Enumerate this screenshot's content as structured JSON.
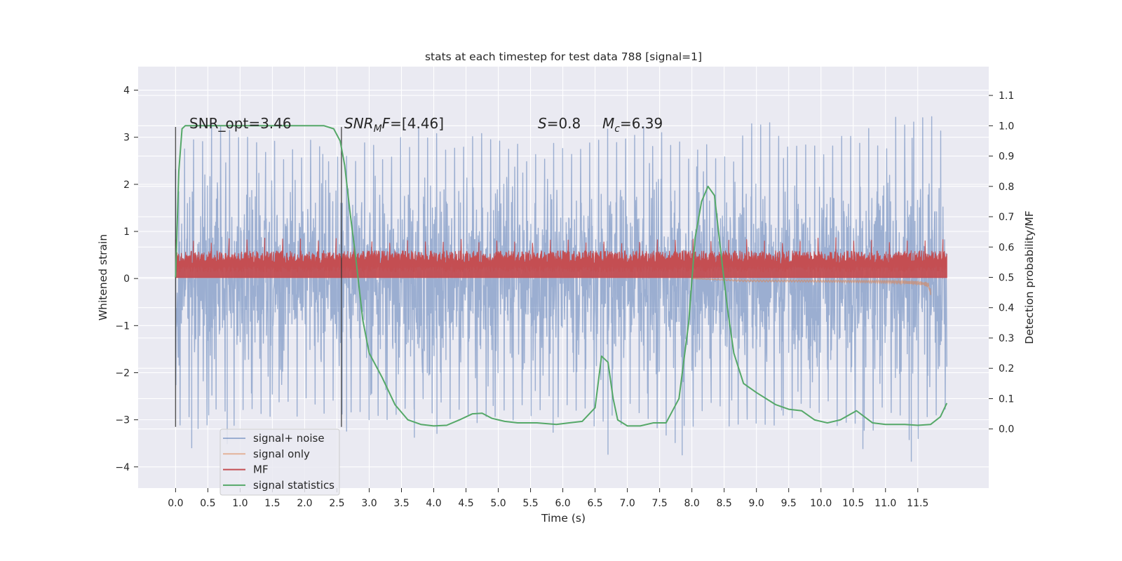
{
  "chart_data": {
    "type": "line",
    "title": "stats at each timestep for test data 788 [signal=1]",
    "xlabel": "Time (s)",
    "ylabel_left": "Whitened strain",
    "ylabel_right": "Detection probability/MF",
    "xlim": [
      -0.58,
      12.6
    ],
    "ylim_left": [
      -4.45,
      4.5
    ],
    "ylim_right": [
      -0.195,
      1.195
    ],
    "x_ticks": [
      0.0,
      0.5,
      1.0,
      1.5,
      2.0,
      2.5,
      3.0,
      3.5,
      4.0,
      4.5,
      5.0,
      5.5,
      6.0,
      6.5,
      7.0,
      7.5,
      8.0,
      8.5,
      9.0,
      9.5,
      10.0,
      10.5,
      11.0,
      11.5
    ],
    "x_tick_labels": [
      "0.0",
      "0.5",
      "1.0",
      "1.5",
      "2.0",
      "2.5",
      "3.0",
      "3.5",
      "4.0",
      "4.5",
      "5.0",
      "5.5",
      "6.0",
      "6.5",
      "7.0",
      "7.5",
      "8.0",
      "8.5",
      "9.0",
      "9.5",
      "10.0",
      "10.5",
      "11.0",
      "11.5"
    ],
    "y_left_ticks": [
      4,
      3,
      2,
      1,
      0,
      -1,
      -2,
      -3,
      -4
    ],
    "y_left_tick_labels": [
      "4",
      "3",
      "2",
      "1",
      "0",
      "−1",
      "−2",
      "−3",
      "−4"
    ],
    "y_right_ticks": [
      1.1,
      1.0,
      0.9,
      0.8,
      0.7,
      0.6,
      0.5,
      0.4,
      0.3,
      0.2,
      0.1,
      0.0
    ],
    "y_right_tick_labels": [
      "1.1",
      "1.0",
      "0.9",
      "0.8",
      "0.7",
      "0.6",
      "0.5",
      "0.4",
      "0.3",
      "0.2",
      "0.1",
      "0.0"
    ],
    "grid": true,
    "legend_position": "lower-left",
    "annotations": {
      "snr_opt": "SNR_opt=3.46",
      "snr_mf_sym": "SNR",
      "snr_mf_sub": "M",
      "snr_mf_rest": "F=[4.46]",
      "s_sym": "S",
      "s_rest": "=0.8",
      "mc_sym": "M",
      "mc_sub": "c",
      "mc_rest": "=6.39"
    },
    "vlines": [
      {
        "x": 0.0,
        "ymin": -3.15,
        "ymax": 3.22
      },
      {
        "x": 2.57,
        "ymin": -3.15,
        "ymax": 3.22
      }
    ],
    "series": [
      {
        "name": "signal+ noise",
        "axis": "left",
        "color": "#4c72b0",
        "style": "noise",
        "x_range": [
          0.0,
          11.95
        ],
        "envelope_upper": [
          2.7,
          3.5,
          3.2,
          2.9,
          3.0,
          2.9,
          2.9,
          2.8,
          3.5,
          2.9,
          3.3,
          2.9,
          2.9,
          2.8,
          3.2,
          3.3,
          3.1,
          2.9,
          2.8,
          3.7,
          3.0,
          2.8,
          3.3,
          3.2,
          3.9,
          3.0
        ],
        "envelope_lower": [
          -3.2,
          -3.3,
          -3.1,
          -3.0,
          -3.0,
          -2.9,
          -2.9,
          -3.4,
          -2.9,
          -3.0,
          -3.1,
          -3.0,
          -2.9,
          -3.0,
          -3.4,
          -2.9,
          -3.7,
          -3.0,
          -3.2,
          -3.3,
          -3.0,
          -3.0,
          -3.3,
          -3.2,
          -3.6,
          -3.0
        ],
        "spike_times": [
          0.25,
          0.8,
          2.65,
          3.7,
          4.05,
          5.85,
          6.7,
          7.85,
          10.65,
          11.4
        ]
      },
      {
        "name": "signal only",
        "axis": "left",
        "color": "#dd8452",
        "style": "chirp",
        "t_end": 11.7,
        "onset": 8.0,
        "min_value": -0.5
      },
      {
        "name": "MF",
        "axis": "left",
        "color": "#c44e52",
        "style": "band",
        "x_range": [
          0.0,
          11.95
        ],
        "band_bottom": 0.02,
        "band_typical": 0.45,
        "band_peak": 0.87
      },
      {
        "name": "signal statistics",
        "axis": "right",
        "color": "#55a868",
        "style": "line",
        "x": [
          0.0,
          0.05,
          0.1,
          0.15,
          0.2,
          0.3,
          0.5,
          1.0,
          1.5,
          2.0,
          2.3,
          2.45,
          2.55,
          2.62,
          2.7,
          2.8,
          2.9,
          3.0,
          3.2,
          3.4,
          3.6,
          3.8,
          4.0,
          4.2,
          4.4,
          4.6,
          4.75,
          4.9,
          5.1,
          5.3,
          5.6,
          5.9,
          6.1,
          6.3,
          6.5,
          6.6,
          6.7,
          6.78,
          6.85,
          7.0,
          7.2,
          7.4,
          7.6,
          7.8,
          7.95,
          8.05,
          8.15,
          8.25,
          8.35,
          8.45,
          8.55,
          8.65,
          8.8,
          9.0,
          9.3,
          9.5,
          9.7,
          9.9,
          10.1,
          10.3,
          10.55,
          10.8,
          11.0,
          11.3,
          11.5,
          11.7,
          11.85,
          11.95
        ],
        "y": [
          0.5,
          0.85,
          0.99,
          1.0,
          1.0,
          1.0,
          1.0,
          1.0,
          1.0,
          1.0,
          1.0,
          0.99,
          0.95,
          0.87,
          0.72,
          0.55,
          0.36,
          0.25,
          0.17,
          0.08,
          0.03,
          0.015,
          0.01,
          0.012,
          0.03,
          0.05,
          0.052,
          0.035,
          0.025,
          0.02,
          0.02,
          0.015,
          0.02,
          0.025,
          0.07,
          0.24,
          0.22,
          0.1,
          0.03,
          0.01,
          0.01,
          0.02,
          0.02,
          0.1,
          0.35,
          0.63,
          0.75,
          0.8,
          0.77,
          0.58,
          0.4,
          0.25,
          0.15,
          0.12,
          0.08,
          0.065,
          0.06,
          0.03,
          0.02,
          0.03,
          0.06,
          0.02,
          0.015,
          0.015,
          0.012,
          0.015,
          0.04,
          0.085
        ]
      }
    ]
  }
}
